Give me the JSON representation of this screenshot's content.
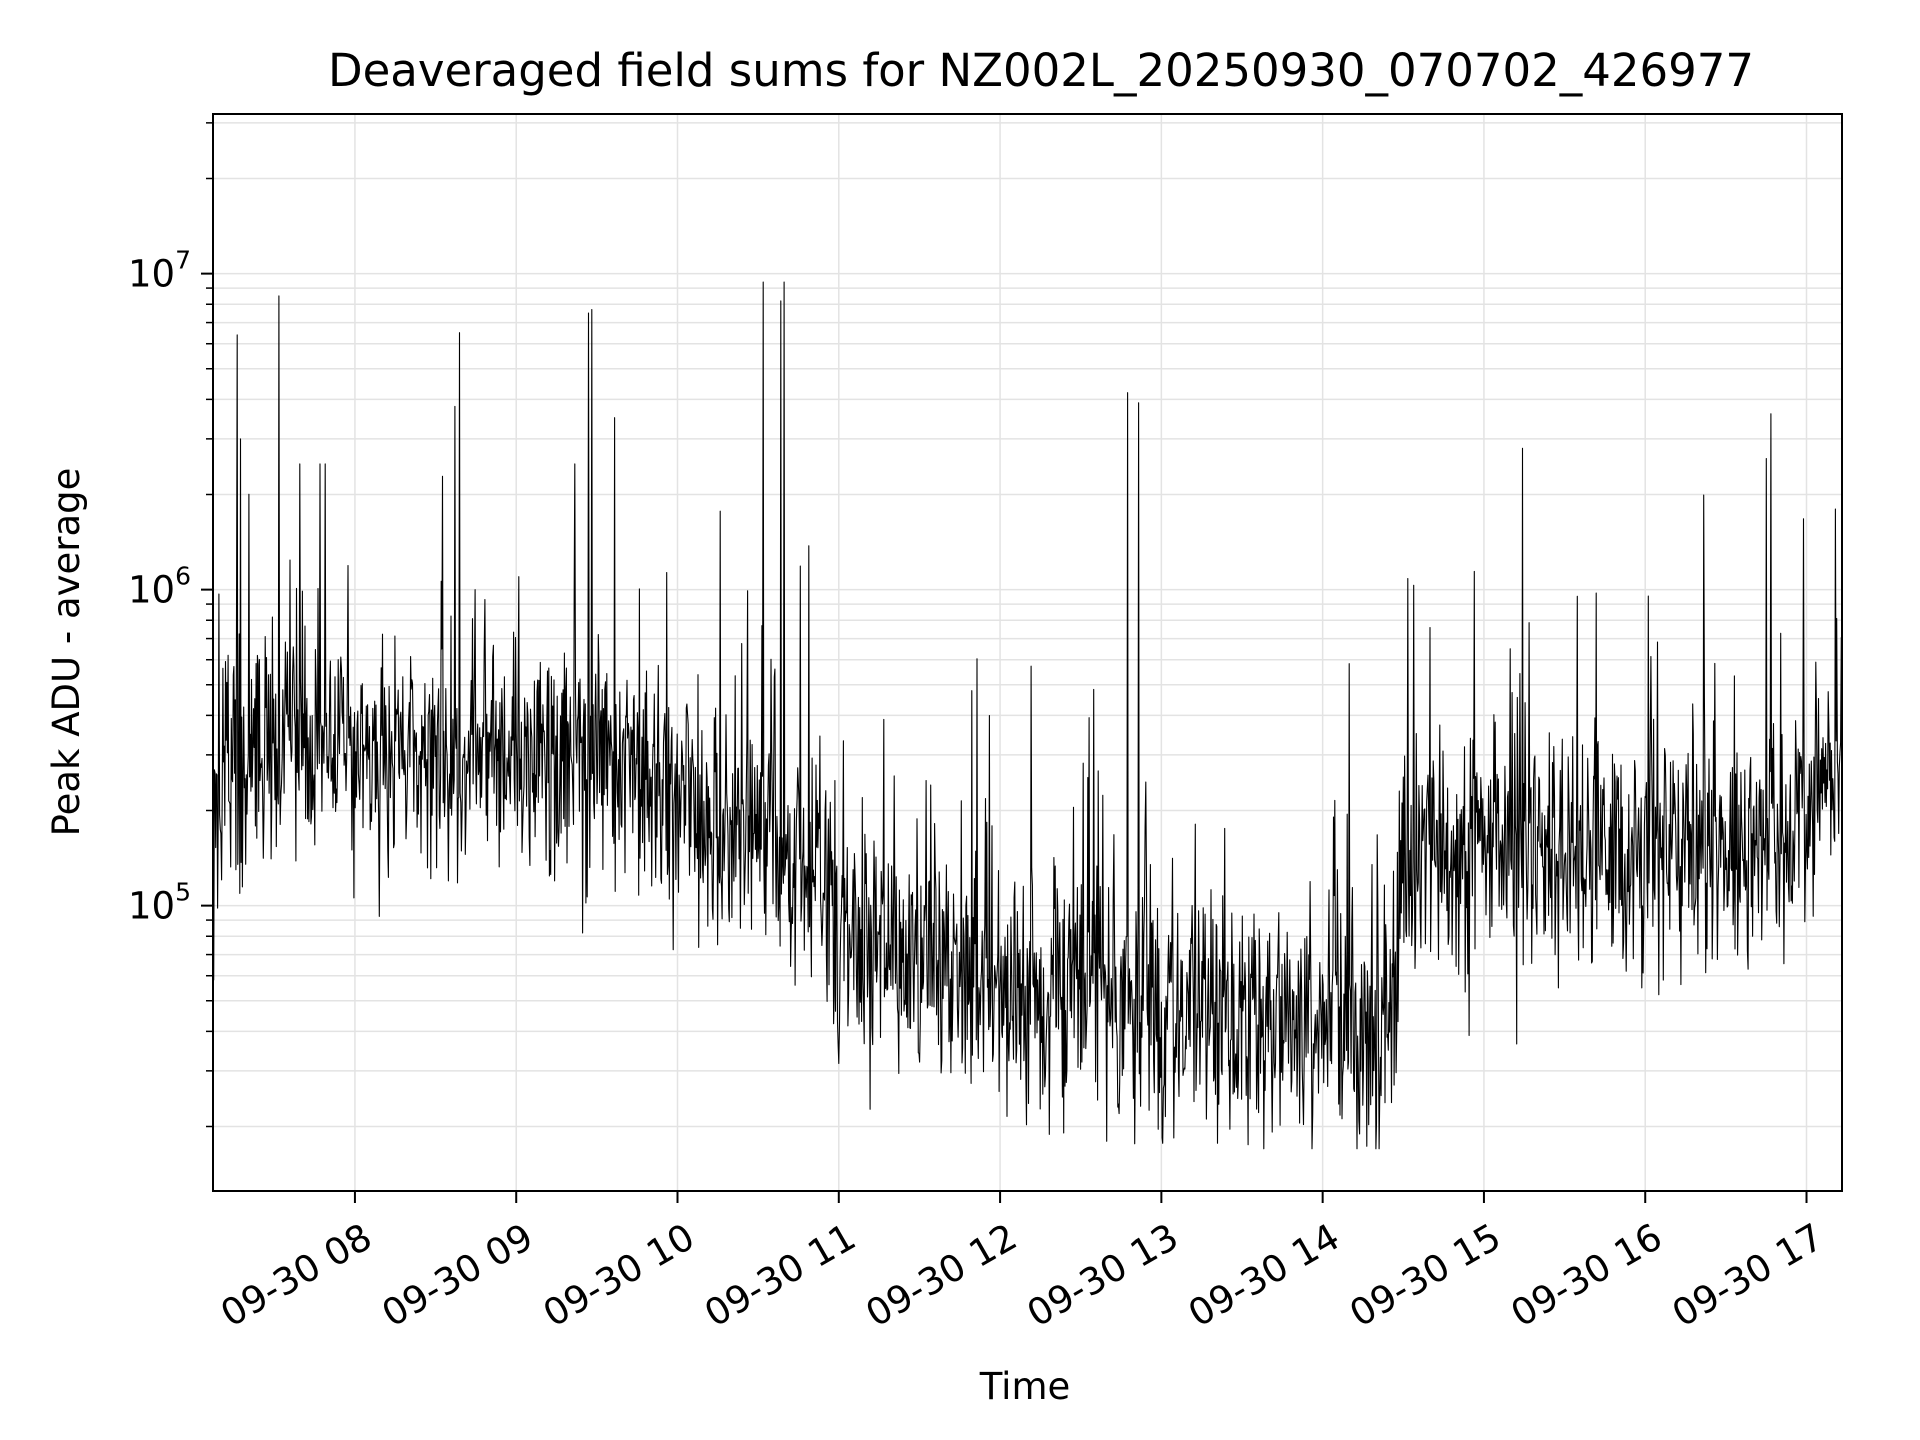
{
  "chart_data": {
    "type": "line",
    "title": "Deaveraged field sums for NZ002L_20250930_070702_426977",
    "xlabel": "Time",
    "ylabel": "Peak ADU - average",
    "yscale": "log",
    "xlim": [
      7.12,
      17.22
    ],
    "ylim": [
      12500,
      32000000
    ],
    "x_ticks": [
      {
        "value": 8,
        "label": "09-30 08"
      },
      {
        "value": 9,
        "label": "09-30 09"
      },
      {
        "value": 10,
        "label": "09-30 10"
      },
      {
        "value": 11,
        "label": "09-30 11"
      },
      {
        "value": 12,
        "label": "09-30 12"
      },
      {
        "value": 13,
        "label": "09-30 13"
      },
      {
        "value": 14,
        "label": "09-30 14"
      },
      {
        "value": 15,
        "label": "09-30 15"
      },
      {
        "value": 16,
        "label": "09-30 16"
      },
      {
        "value": 17,
        "label": "09-30 17"
      }
    ],
    "y_ticks": [
      {
        "value": 100000,
        "base": "10",
        "exponent": "5"
      },
      {
        "value": 1000000,
        "base": "10",
        "exponent": "6"
      },
      {
        "value": 10000000,
        "base": "10",
        "exponent": "7"
      }
    ],
    "grid": true,
    "series": [
      {
        "name": "Peak ADU - average",
        "color": "#000000",
        "baseline": [
          {
            "x": 7.12,
            "y": 260000
          },
          {
            "x": 7.5,
            "y": 330000
          },
          {
            "x": 8.0,
            "y": 300000
          },
          {
            "x": 8.5,
            "y": 290000
          },
          {
            "x": 9.0,
            "y": 300000
          },
          {
            "x": 9.5,
            "y": 280000
          },
          {
            "x": 10.0,
            "y": 200000
          },
          {
            "x": 10.5,
            "y": 170000
          },
          {
            "x": 10.9,
            "y": 120000
          },
          {
            "x": 11.0,
            "y": 75000
          },
          {
            "x": 11.5,
            "y": 65000
          },
          {
            "x": 12.0,
            "y": 52000
          },
          {
            "x": 12.5,
            "y": 55000
          },
          {
            "x": 13.0,
            "y": 50000
          },
          {
            "x": 13.5,
            "y": 45000
          },
          {
            "x": 14.0,
            "y": 42000
          },
          {
            "x": 14.45,
            "y": 45000
          },
          {
            "x": 14.5,
            "y": 140000
          },
          {
            "x": 15.0,
            "y": 150000
          },
          {
            "x": 15.5,
            "y": 140000
          },
          {
            "x": 16.0,
            "y": 140000
          },
          {
            "x": 16.5,
            "y": 150000
          },
          {
            "x": 17.0,
            "y": 180000
          },
          {
            "x": 17.22,
            "y": 300000
          }
        ],
        "peaks": [
          {
            "x": 7.27,
            "y": 6400000
          },
          {
            "x": 7.29,
            "y": 3000000
          },
          {
            "x": 7.53,
            "y": 1900000
          },
          {
            "x": 7.53,
            "y": 8500000
          },
          {
            "x": 8.62,
            "y": 3800000
          },
          {
            "x": 8.65,
            "y": 6500000
          },
          {
            "x": 9.45,
            "y": 7500000
          },
          {
            "x": 9.47,
            "y": 7700000
          },
          {
            "x": 9.61,
            "y": 3500000
          },
          {
            "x": 10.53,
            "y": 9400000
          },
          {
            "x": 10.64,
            "y": 8200000
          },
          {
            "x": 10.66,
            "y": 9400000
          },
          {
            "x": 12.79,
            "y": 4200000
          },
          {
            "x": 12.86,
            "y": 3900000
          },
          {
            "x": 15.24,
            "y": 2800000
          },
          {
            "x": 16.75,
            "y": 2600000
          },
          {
            "x": 16.78,
            "y": 3600000
          },
          {
            "x": 17.18,
            "y": 1800000
          }
        ],
        "note": "noisy time series of ~2500 samples; broad baseline and dominant spikes listed"
      }
    ]
  }
}
